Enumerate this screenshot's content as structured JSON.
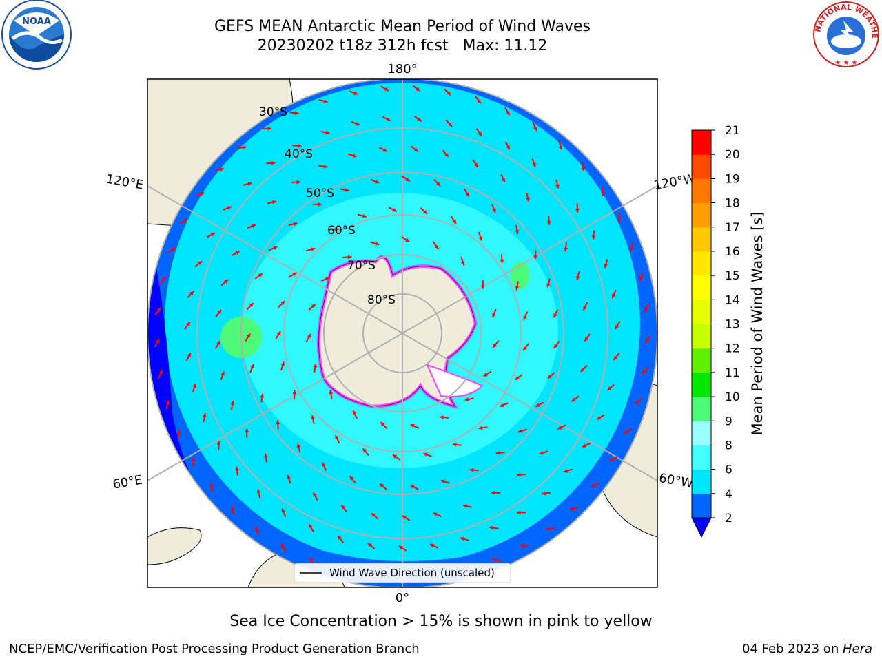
{
  "title": {
    "line1": "GEFS MEAN Antarctic Mean Period of Wind Waves",
    "line2": "20230202 t18z 312h fcst   Max: 11.12"
  },
  "subtitle": "Sea Ice Concentration > 15% is shown in pink to yellow",
  "footer": {
    "credit": "NCEP/EMC/Verification Post Processing Product Generation Branch",
    "date": "04 Feb 2023",
    "on": " on ",
    "machine": "Hera"
  },
  "logos": {
    "left": {
      "text": "NOAA",
      "icon": "noaa-logo"
    },
    "right": {
      "text": "NATIONAL WEATHER SERVICE",
      "icon": "nws-logo"
    }
  },
  "map": {
    "projection": "south-polar-stereographic",
    "longitude_labels": [
      "180°",
      "120°E",
      "120°W",
      "60°E",
      "60°W",
      "0°"
    ],
    "latitude_labels": [
      "30°S",
      "40°S",
      "50°S",
      "60°S",
      "70°S",
      "80°S"
    ],
    "legend": "Wind Wave Direction (unscaled)",
    "arrow_color": "#ff0000",
    "land_color": "#efecdc"
  },
  "colorbar": {
    "label": "Mean Period of Wind Waves [s]",
    "ticks": [
      "2",
      "4",
      "6",
      "8",
      "9",
      "10",
      "11",
      "12",
      "13",
      "14",
      "15",
      "16",
      "17",
      "18",
      "19",
      "20",
      "21"
    ],
    "colors": [
      "#0064ff",
      "#00e5ff",
      "#46ffff",
      "#9affff",
      "#4efa78",
      "#00e600",
      "#62f000",
      "#c8ff00",
      "#e6ff00",
      "#ffff00",
      "#ffe600",
      "#ffc800",
      "#ffa000",
      "#ff7800",
      "#ff4b00",
      "#ff0000"
    ],
    "under_color": "#0000ff"
  }
}
